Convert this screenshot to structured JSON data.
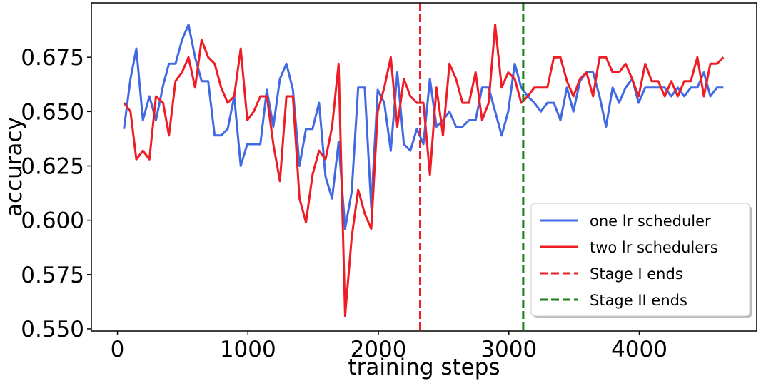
{
  "chart_data": {
    "type": "line",
    "title": "",
    "xlabel": "training steps",
    "ylabel": "accuracy",
    "xlim": [
      -200,
      4900
    ],
    "ylim": [
      0.549,
      0.7
    ],
    "x_ticks": [
      0,
      1000,
      2000,
      3000,
      4000
    ],
    "x_tick_labels": [
      "0",
      "1000",
      "2000",
      "3000",
      "4000"
    ],
    "y_ticks": [
      0.55,
      0.575,
      0.6,
      0.625,
      0.65,
      0.675
    ],
    "y_tick_labels": [
      "0.550",
      "0.575",
      "0.600",
      "0.625",
      "0.650",
      "0.675"
    ],
    "grid": false,
    "legend_position": "lower-right",
    "series": [
      {
        "name": "one lr scheduler",
        "color": "#4169E1",
        "style": "solid",
        "points": [
          [
            50,
            0.642
          ],
          [
            100,
            0.665
          ],
          [
            145,
            0.679
          ],
          [
            195,
            0.646
          ],
          [
            245,
            0.657
          ],
          [
            295,
            0.646
          ],
          [
            350,
            0.662
          ],
          [
            395,
            0.672
          ],
          [
            445,
            0.672
          ],
          [
            495,
            0.683
          ],
          [
            545,
            0.69
          ],
          [
            595,
            0.675
          ],
          [
            645,
            0.664
          ],
          [
            695,
            0.664
          ],
          [
            745,
            0.639
          ],
          [
            795,
            0.639
          ],
          [
            845,
            0.642
          ],
          [
            895,
            0.657
          ],
          [
            945,
            0.625
          ],
          [
            995,
            0.635
          ],
          [
            1045,
            0.635
          ],
          [
            1095,
            0.635
          ],
          [
            1145,
            0.66
          ],
          [
            1195,
            0.643
          ],
          [
            1245,
            0.665
          ],
          [
            1295,
            0.672
          ],
          [
            1345,
            0.66
          ],
          [
            1395,
            0.625
          ],
          [
            1445,
            0.642
          ],
          [
            1495,
            0.642
          ],
          [
            1545,
            0.654
          ],
          [
            1595,
            0.62
          ],
          [
            1645,
            0.61
          ],
          [
            1695,
            0.636
          ],
          [
            1745,
            0.596
          ],
          [
            1795,
            0.613
          ],
          [
            1845,
            0.661
          ],
          [
            1895,
            0.661
          ],
          [
            1945,
            0.606
          ],
          [
            1995,
            0.66
          ],
          [
            2045,
            0.654
          ],
          [
            2095,
            0.632
          ],
          [
            2145,
            0.668
          ],
          [
            2195,
            0.635
          ],
          [
            2245,
            0.632
          ],
          [
            2295,
            0.642
          ],
          [
            2345,
            0.635
          ],
          [
            2395,
            0.665
          ],
          [
            2445,
            0.643
          ],
          [
            2495,
            0.646
          ],
          [
            2545,
            0.65
          ],
          [
            2595,
            0.643
          ],
          [
            2645,
            0.643
          ],
          [
            2695,
            0.646
          ],
          [
            2745,
            0.646
          ],
          [
            2795,
            0.661
          ],
          [
            2845,
            0.661
          ],
          [
            2895,
            0.65
          ],
          [
            2945,
            0.639
          ],
          [
            2995,
            0.65
          ],
          [
            3045,
            0.672
          ],
          [
            3095,
            0.661
          ],
          [
            3145,
            0.657
          ],
          [
            3195,
            0.654
          ],
          [
            3245,
            0.65
          ],
          [
            3295,
            0.654
          ],
          [
            3345,
            0.654
          ],
          [
            3395,
            0.646
          ],
          [
            3445,
            0.661
          ],
          [
            3495,
            0.65
          ],
          [
            3545,
            0.664
          ],
          [
            3595,
            0.668
          ],
          [
            3645,
            0.668
          ],
          [
            3695,
            0.657
          ],
          [
            3745,
            0.643
          ],
          [
            3795,
            0.661
          ],
          [
            3845,
            0.654
          ],
          [
            3895,
            0.661
          ],
          [
            3945,
            0.665
          ],
          [
            3995,
            0.654
          ],
          [
            4045,
            0.661
          ],
          [
            4095,
            0.661
          ],
          [
            4145,
            0.661
          ],
          [
            4195,
            0.661
          ],
          [
            4245,
            0.657
          ],
          [
            4295,
            0.661
          ],
          [
            4345,
            0.657
          ],
          [
            4395,
            0.661
          ],
          [
            4445,
            0.661
          ],
          [
            4495,
            0.668
          ],
          [
            4545,
            0.657
          ],
          [
            4595,
            0.661
          ],
          [
            4645,
            0.661
          ]
        ]
      },
      {
        "name": "two lr schedulers",
        "color": "#EE1C25",
        "style": "solid",
        "points": [
          [
            50,
            0.654
          ],
          [
            100,
            0.65
          ],
          [
            145,
            0.628
          ],
          [
            195,
            0.632
          ],
          [
            245,
            0.628
          ],
          [
            295,
            0.657
          ],
          [
            350,
            0.654
          ],
          [
            395,
            0.639
          ],
          [
            445,
            0.664
          ],
          [
            495,
            0.668
          ],
          [
            545,
            0.675
          ],
          [
            595,
            0.661
          ],
          [
            645,
            0.683
          ],
          [
            695,
            0.675
          ],
          [
            745,
            0.672
          ],
          [
            795,
            0.661
          ],
          [
            845,
            0.654
          ],
          [
            895,
            0.657
          ],
          [
            945,
            0.679
          ],
          [
            995,
            0.646
          ],
          [
            1045,
            0.65
          ],
          [
            1095,
            0.657
          ],
          [
            1145,
            0.657
          ],
          [
            1195,
            0.635
          ],
          [
            1245,
            0.618
          ],
          [
            1295,
            0.657
          ],
          [
            1345,
            0.657
          ],
          [
            1395,
            0.61
          ],
          [
            1445,
            0.599
          ],
          [
            1495,
            0.621
          ],
          [
            1545,
            0.632
          ],
          [
            1595,
            0.628
          ],
          [
            1645,
            0.643
          ],
          [
            1695,
            0.672
          ],
          [
            1745,
            0.556
          ],
          [
            1795,
            0.592
          ],
          [
            1845,
            0.614
          ],
          [
            1895,
            0.603
          ],
          [
            1945,
            0.596
          ],
          [
            1995,
            0.65
          ],
          [
            2045,
            0.661
          ],
          [
            2095,
            0.675
          ],
          [
            2145,
            0.643
          ],
          [
            2195,
            0.665
          ],
          [
            2245,
            0.657
          ],
          [
            2295,
            0.654
          ],
          [
            2345,
            0.654
          ],
          [
            2395,
            0.621
          ],
          [
            2445,
            0.661
          ],
          [
            2495,
            0.639
          ],
          [
            2545,
            0.672
          ],
          [
            2595,
            0.665
          ],
          [
            2645,
            0.654
          ],
          [
            2695,
            0.654
          ],
          [
            2745,
            0.668
          ],
          [
            2795,
            0.646
          ],
          [
            2845,
            0.654
          ],
          [
            2895,
            0.69
          ],
          [
            2945,
            0.661
          ],
          [
            2995,
            0.668
          ],
          [
            3045,
            0.665
          ],
          [
            3095,
            0.654
          ],
          [
            3145,
            0.657
          ],
          [
            3195,
            0.661
          ],
          [
            3245,
            0.661
          ],
          [
            3295,
            0.661
          ],
          [
            3345,
            0.675
          ],
          [
            3395,
            0.675
          ],
          [
            3445,
            0.664
          ],
          [
            3495,
            0.657
          ],
          [
            3545,
            0.665
          ],
          [
            3595,
            0.668
          ],
          [
            3645,
            0.657
          ],
          [
            3695,
            0.675
          ],
          [
            3745,
            0.675
          ],
          [
            3795,
            0.668
          ],
          [
            3845,
            0.668
          ],
          [
            3895,
            0.672
          ],
          [
            3945,
            0.665
          ],
          [
            3995,
            0.657
          ],
          [
            4045,
            0.672
          ],
          [
            4095,
            0.664
          ],
          [
            4145,
            0.664
          ],
          [
            4195,
            0.657
          ],
          [
            4245,
            0.664
          ],
          [
            4295,
            0.657
          ],
          [
            4345,
            0.664
          ],
          [
            4395,
            0.664
          ],
          [
            4445,
            0.675
          ],
          [
            4495,
            0.657
          ],
          [
            4545,
            0.672
          ],
          [
            4595,
            0.672
          ],
          [
            4645,
            0.675
          ]
        ]
      },
      {
        "name": "Stage I ends",
        "color": "#EE1C25",
        "style": "dashed",
        "vline_x": 2320
      },
      {
        "name": "Stage II ends",
        "color": "#1A7F1A",
        "style": "dashed",
        "vline_x": 3110
      }
    ]
  }
}
